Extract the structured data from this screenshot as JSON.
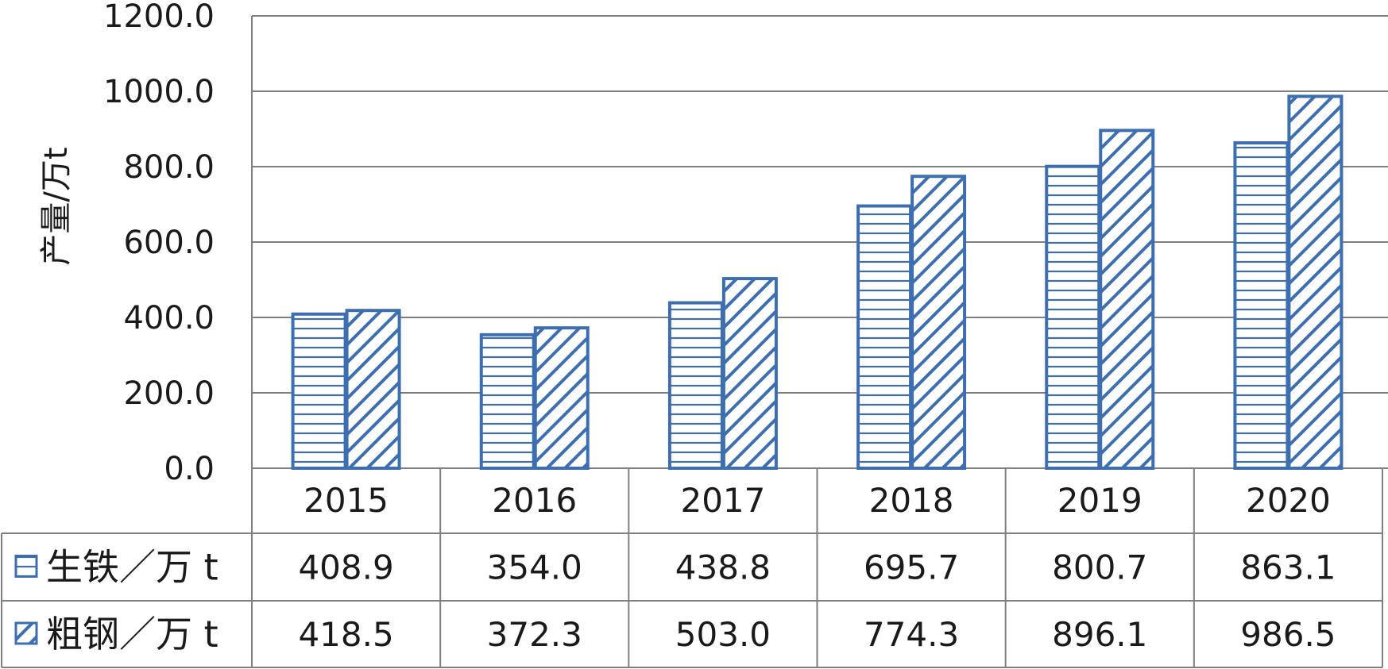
{
  "colors": {
    "bar_stroke": "#3d6fb0",
    "grid": "#7f7f7f",
    "table_line": "#7f7f7f"
  },
  "chart_data": {
    "type": "bar",
    "ylabel": "产量/万t",
    "ylim": [
      0,
      1200
    ],
    "yticks": [
      0,
      200,
      400,
      600,
      800,
      1000,
      1200
    ],
    "ytick_labels": [
      "0.0",
      "200.0",
      "400.0",
      "600.0",
      "800.0",
      "1000.0",
      "1200.0"
    ],
    "categories": [
      "2015",
      "2016",
      "2017",
      "2018",
      "2019",
      "2020"
    ],
    "series": [
      {
        "name": "生铁／万 t",
        "pattern": "horizontal-lines",
        "values": [
          408.9,
          354.0,
          438.8,
          695.7,
          800.7,
          863.1
        ],
        "labels": [
          "408.9",
          "354.0",
          "438.8",
          "695.7",
          "800.7",
          "863.1"
        ]
      },
      {
        "name": "粗钢／万 t",
        "pattern": "diagonal-lines",
        "values": [
          418.5,
          372.3,
          503.0,
          774.3,
          896.1,
          986.5
        ],
        "labels": [
          "418.5",
          "372.3",
          "503.0",
          "774.3",
          "896.1",
          "986.5"
        ]
      }
    ],
    "grid": true,
    "legend": "data-table"
  }
}
